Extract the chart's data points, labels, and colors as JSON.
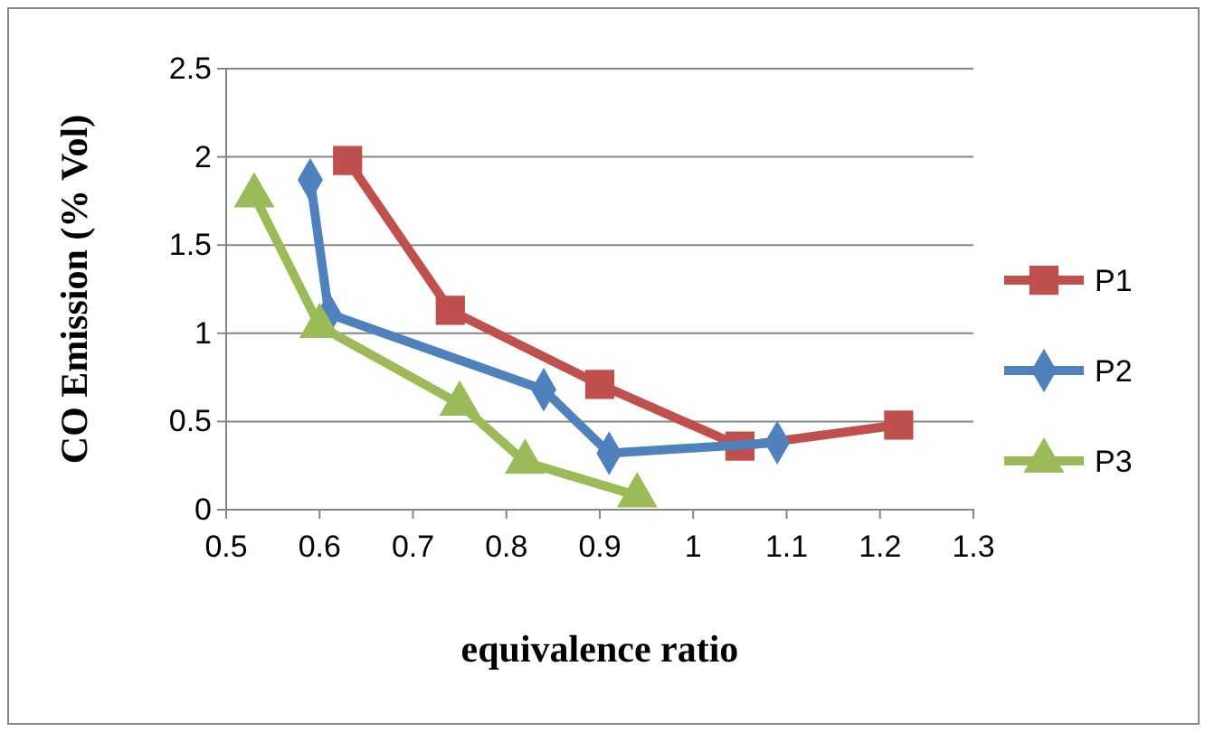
{
  "chart_data": {
    "type": "line",
    "xlabel": "equivalence ratio",
    "ylabel": "CO Emission (% Vol)",
    "xlim": [
      0.5,
      1.3
    ],
    "xticks": [
      0.5,
      0.6,
      0.7,
      0.8,
      0.9,
      {
        "value": 1,
        "label": "1"
      },
      1.1,
      1.2,
      1.3
    ],
    "ylim": [
      0,
      2.5
    ],
    "yticks": [
      {
        "value": 0,
        "label": "0"
      },
      0.5,
      {
        "value": 1,
        "label": "1"
      },
      1.5,
      {
        "value": 2,
        "label": "2"
      },
      2.5
    ],
    "grid": "y",
    "legend": "right",
    "series": [
      {
        "name": "P1",
        "color": "#c0504d",
        "marker": "square",
        "x": [
          0.63,
          0.74,
          0.9,
          1.05,
          1.22
        ],
        "values": [
          1.98,
          1.13,
          0.71,
          0.36,
          0.48
        ]
      },
      {
        "name": "P2",
        "color": "#4f81bd",
        "marker": "diamond",
        "x": [
          0.59,
          0.61,
          0.84,
          0.91,
          1.09
        ],
        "values": [
          1.87,
          1.11,
          0.68,
          0.32,
          0.38
        ]
      },
      {
        "name": "P3",
        "color": "#9bbb59",
        "marker": "triangle",
        "x": [
          0.53,
          0.6,
          0.75,
          0.82,
          0.94
        ],
        "values": [
          1.78,
          1.04,
          0.6,
          0.27,
          0.08
        ]
      }
    ]
  }
}
